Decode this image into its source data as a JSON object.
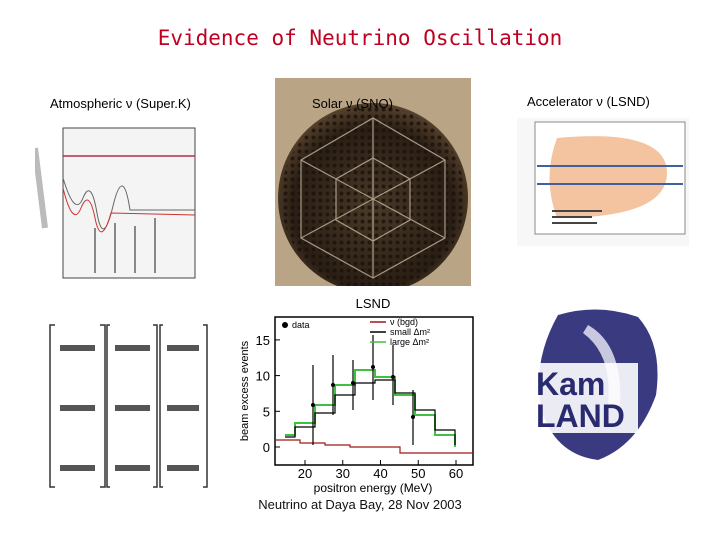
{
  "title": "Evidence of Neutrino Oscillation",
  "panels": {
    "atmospheric": {
      "label": "Atmospheric ν (Super.K)"
    },
    "solar": {
      "label": "Solar ν (SNO)"
    },
    "accelerator": {
      "label": "Accelerator ν (LSND)"
    }
  },
  "lsnd_plot": {
    "title": "LSND",
    "legend": [
      "data",
      "ν (bgd)",
      "small Δm²",
      "large Δm²"
    ],
    "y_label": "beam excess events",
    "x_label": "positron energy (MeV)",
    "x_ticks": [
      "20",
      "30",
      "40",
      "50",
      "60"
    ],
    "y_ticks": [
      "0",
      "5",
      "10",
      "15"
    ]
  },
  "kamland_logo": {
    "line1": "Kam",
    "line2": "LAND"
  },
  "footer": "Neutrino at Daya Bay, 28 Nov 2003"
}
